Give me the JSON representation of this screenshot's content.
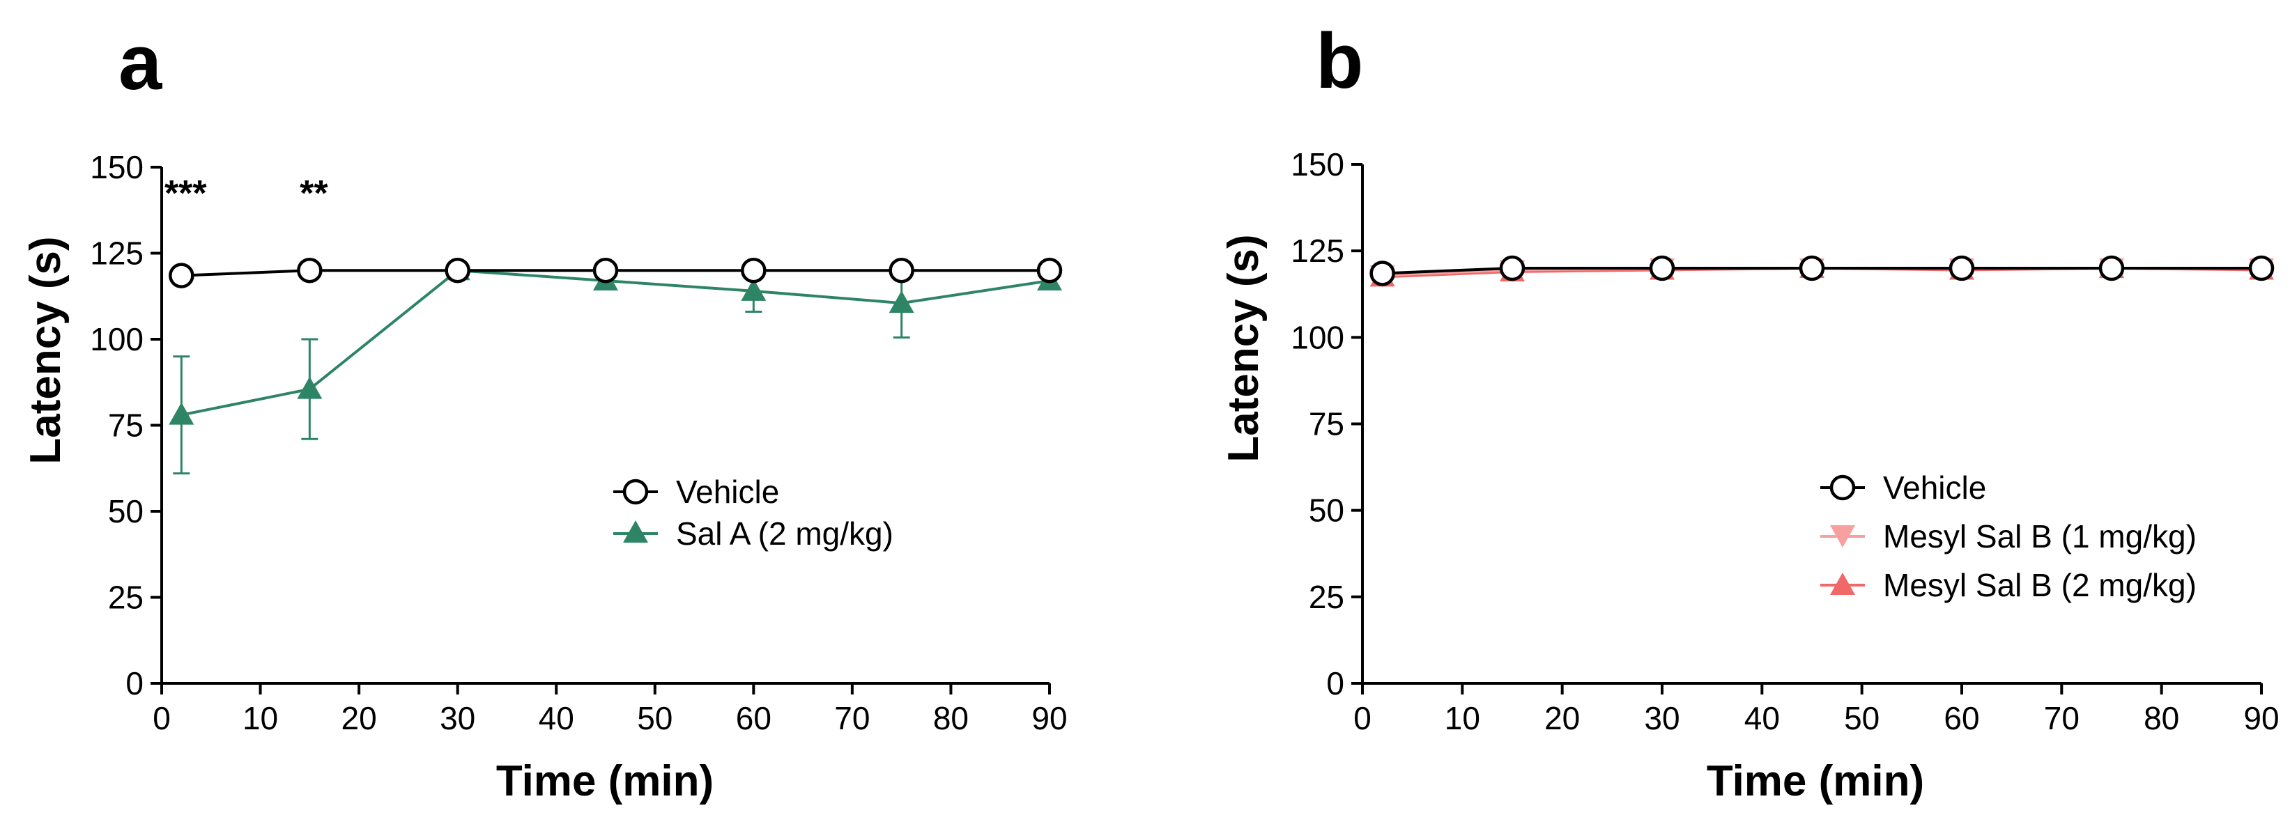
{
  "figure": {
    "background": "#ffffff"
  },
  "chart_data": [
    {
      "panel": "a",
      "type": "line",
      "title": "",
      "xlabel": "Time (min)",
      "ylabel": "Latency (s)",
      "xlim": [
        0,
        90
      ],
      "ylim": [
        0,
        150
      ],
      "xticks": [
        0,
        10,
        20,
        30,
        40,
        50,
        60,
        70,
        80,
        90
      ],
      "yticks": [
        0,
        25,
        50,
        75,
        100,
        125,
        150
      ],
      "legend_position": "center-right",
      "series": [
        {
          "name": "Vehicle",
          "marker": "open-circle",
          "color": "#000000",
          "x": [
            2,
            15,
            30,
            45,
            60,
            75,
            90
          ],
          "y": [
            118.5,
            120,
            120,
            120,
            120,
            120,
            120
          ],
          "err": [
            0,
            0,
            0,
            0,
            0,
            0,
            0
          ]
        },
        {
          "name": "Sal A (2 mg/kg)",
          "marker": "filled-triangle-up",
          "color": "#2e8565",
          "x": [
            2,
            15,
            30,
            45,
            60,
            75,
            90
          ],
          "y": [
            78,
            85.5,
            120,
            117,
            114,
            110.5,
            117
          ],
          "err": [
            17,
            14.5,
            0,
            1.5,
            6,
            10,
            1.5
          ]
        }
      ],
      "annotations": [
        {
          "x": 2,
          "text": "***"
        },
        {
          "x": 15,
          "text": "**"
        }
      ]
    },
    {
      "panel": "b",
      "type": "line",
      "title": "",
      "xlabel": "Time (min)",
      "ylabel": "Latency  (s)",
      "xlim": [
        0,
        90
      ],
      "ylim": [
        0,
        150
      ],
      "xticks": [
        0,
        10,
        20,
        30,
        40,
        50,
        60,
        70,
        80,
        90
      ],
      "yticks": [
        0,
        25,
        50,
        75,
        100,
        125,
        150
      ],
      "legend_position": "lower-right",
      "series": [
        {
          "name": "Vehicle",
          "marker": "open-circle",
          "color": "#000000",
          "x": [
            2,
            15,
            30,
            45,
            60,
            75,
            90
          ],
          "y": [
            118.5,
            120,
            120,
            120,
            120,
            120,
            120
          ],
          "err": [
            0,
            0,
            0,
            0,
            0,
            0,
            0
          ]
        },
        {
          "name": "Mesyl Sal B (1 mg/kg)",
          "marker": "filled-triangle-down",
          "color": "#f7a0a0",
          "x": [
            2,
            15,
            30,
            45,
            60,
            75,
            90
          ],
          "y": [
            118,
            119.5,
            120,
            120,
            120,
            120,
            120
          ],
          "err": [
            0,
            0,
            0,
            0,
            0,
            0,
            0
          ]
        },
        {
          "name": "Mesyl Sal B (2 mg/kg)",
          "marker": "filled-triangle-up",
          "color": "#f06868",
          "x": [
            2,
            15,
            30,
            45,
            60,
            75,
            90
          ],
          "y": [
            117.5,
            119,
            119.5,
            120,
            119.5,
            120,
            119.5
          ],
          "err": [
            0,
            0,
            0,
            0,
            0,
            0,
            0
          ]
        }
      ],
      "annotations": []
    }
  ]
}
